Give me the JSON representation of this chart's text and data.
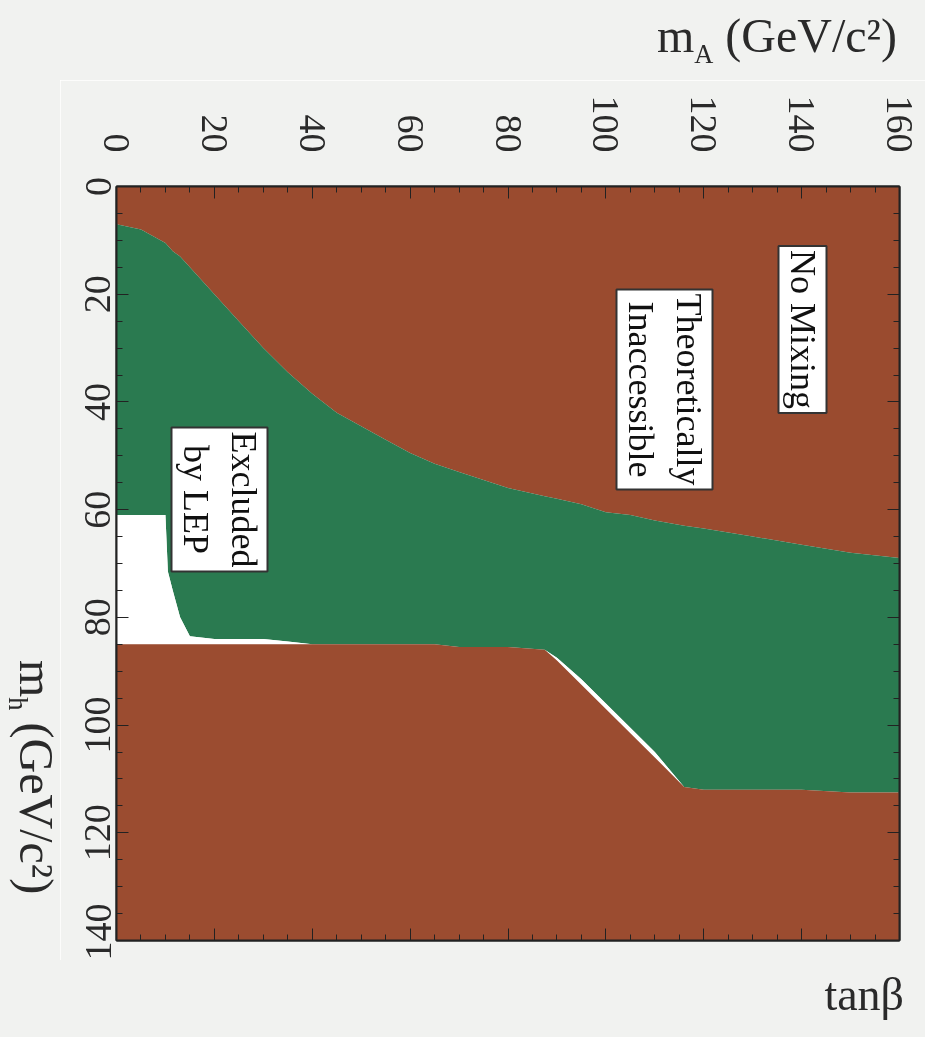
{
  "chart_data": {
    "type": "area",
    "stacked": true,
    "xlabel": "m$_{A}$ (GeV/c²)",
    "ylabel": "m$_{h}$ (GeV/c²)",
    "x": [
      0,
      5,
      10,
      10.5,
      11.5,
      13,
      15,
      20,
      25,
      30,
      35,
      40,
      45,
      50,
      55,
      60,
      65,
      70,
      75,
      80,
      87.5,
      90,
      95,
      100,
      105,
      110,
      116,
      120,
      130,
      140,
      150,
      160
    ],
    "series": [
      {
        "color": "#9a4b2f",
        "values": [
          7,
          8,
          10.5,
          11,
          12,
          13,
          15,
          20,
          25,
          30,
          34.5,
          38.5,
          42,
          44.5,
          47,
          49.5,
          51.5,
          53,
          54.5,
          56,
          57.5,
          58,
          59,
          60.5,
          61,
          62,
          63,
          63.5,
          65,
          66.5,
          68,
          69
        ]
      },
      {
        "color": "#2a7a50",
        "values": [
          54,
          53,
          50.5,
          60.5,
          63,
          67,
          68.5,
          64,
          59,
          54,
          50,
          46.5,
          43,
          40.5,
          38,
          35.5,
          33.5,
          32.5,
          31,
          29.5,
          28.5,
          29.5,
          32.5,
          35.5,
          39.5,
          43,
          48.5,
          48.5,
          47,
          45.5,
          44.5,
          43.5
        ]
      },
      {
        "color": "#ffffff",
        "values": [
          24,
          24,
          24,
          13.5,
          10,
          5,
          1.5,
          1,
          1,
          1,
          0.5,
          0,
          null,
          null,
          null,
          null,
          null,
          null,
          null,
          null,
          0,
          0.5,
          1,
          1,
          1,
          1,
          0,
          null,
          null,
          null,
          null,
          null
        ]
      },
      {
        "color": "#9b4c30",
        "values": [
          55,
          55,
          55,
          55,
          55,
          55,
          55,
          55,
          55,
          55,
          55,
          55,
          55,
          55,
          55,
          55,
          55,
          54.5,
          54.5,
          54.5,
          54,
          52,
          47.5,
          43,
          38.5,
          34,
          28.5,
          28,
          28,
          28,
          27.5,
          27.5
        ]
      }
    ],
    "xlim": [
      0,
      160
    ],
    "xticks": [
      0,
      20,
      40,
      60,
      80,
      100,
      120,
      140,
      160
    ],
    "ylim": [
      140,
      0
    ],
    "yticks": [
      0,
      20,
      40,
      60,
      80,
      100,
      120,
      140
    ],
    "annotations": [
      "No Mixing",
      "Theoretically\nInaccessible",
      "Excluded\nby LEP",
      "tanβ"
    ]
  }
}
